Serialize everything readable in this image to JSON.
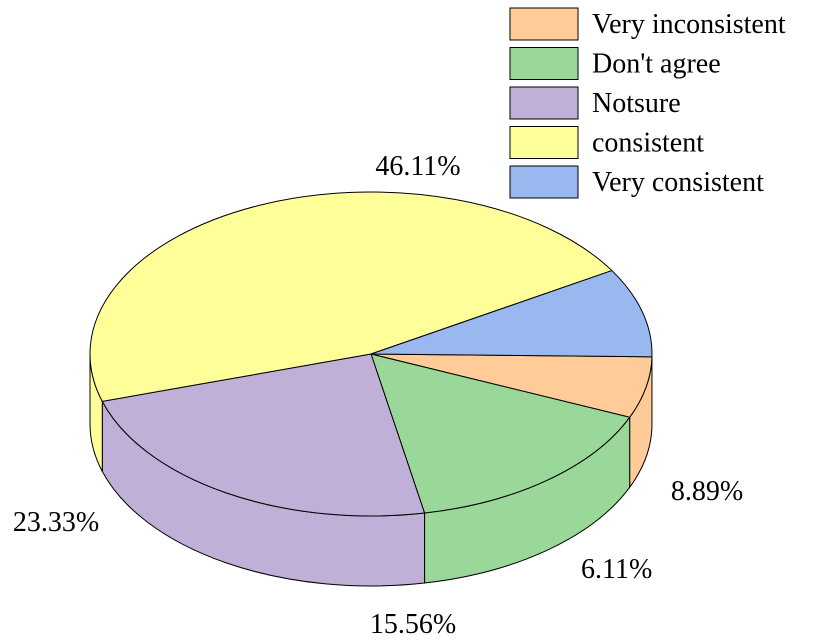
{
  "chart_data": {
    "type": "pie",
    "style": "3d",
    "legend_position": "top-right",
    "categories": [
      "Very inconsistent",
      "Don't agree",
      "Notsure",
      "consistent",
      "Very consistent"
    ],
    "values": [
      6.11,
      15.56,
      23.33,
      46.11,
      8.89
    ],
    "data_labels": [
      "6.11%",
      "15.56%",
      "23.33%",
      "46.11%",
      "8.89%"
    ],
    "colors": [
      "#FFCC99",
      "#99D899",
      "#C0B0D8",
      "#FFFF99",
      "#99B8F0"
    ]
  }
}
